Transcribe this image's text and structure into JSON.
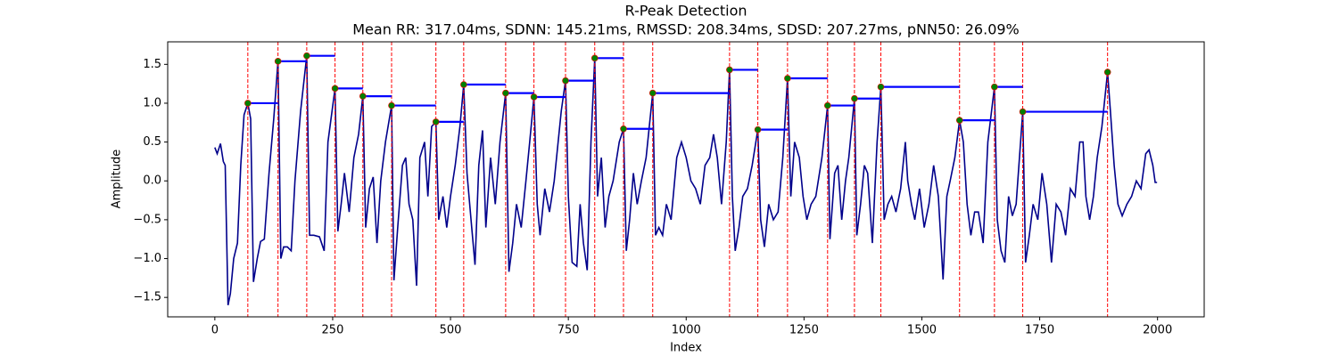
{
  "chart_data": {
    "type": "line",
    "title": "R-Peak Detection",
    "subtitle": "Mean RR: 317.04ms, SDNN: 145.21ms, RMSSD: 208.34ms, SDSD: 207.27ms, pNN50: 26.09%",
    "x_label": "Index",
    "y_label": "Amplitude",
    "xlim": [
      -100,
      2099
    ],
    "ylim": [
      -1.75,
      1.79
    ],
    "xticks": [
      0,
      250,
      500,
      750,
      1000,
      1250,
      1500,
      1750,
      2000
    ],
    "yticks": [
      {
        "value": -1.5,
        "label": "−1.5"
      },
      {
        "value": -1.0,
        "label": "−1.0"
      },
      {
        "value": -0.5,
        "label": "−0.5"
      },
      {
        "value": 0,
        "label": "0.0"
      },
      {
        "value": 0.5,
        "label": "0.5"
      },
      {
        "value": 1.0,
        "label": "1.0"
      },
      {
        "value": 1.5,
        "label": "1.5"
      }
    ],
    "signal": {
      "color": "#00008b",
      "x": [
        0,
        5,
        12,
        18,
        22,
        28,
        33,
        40,
        48,
        55,
        62,
        70,
        76,
        82,
        90,
        97,
        105,
        115,
        125,
        134,
        140,
        146,
        154,
        162,
        170,
        182,
        195,
        201,
        210,
        222,
        232,
        240,
        255,
        261,
        268,
        275,
        285,
        295,
        305,
        314,
        320,
        328,
        336,
        344,
        352,
        362,
        375,
        380,
        388,
        398,
        405,
        412,
        420,
        428,
        435,
        445,
        452,
        460,
        469,
        475,
        484,
        492,
        500,
        510,
        520,
        528,
        535,
        545,
        552,
        560,
        568,
        575,
        585,
        595,
        605,
        617,
        624,
        632,
        640,
        650,
        660,
        668,
        677,
        684,
        690,
        700,
        710,
        720,
        735,
        744,
        750,
        758,
        768,
        775,
        782,
        790,
        798,
        806,
        812,
        820,
        828,
        836,
        845,
        858,
        867,
        873,
        880,
        888,
        896,
        905,
        915,
        929,
        935,
        942,
        950,
        958,
        968,
        980,
        990,
        1000,
        1010,
        1020,
        1030,
        1040,
        1050,
        1058,
        1066,
        1075,
        1085,
        1092,
        1098,
        1104,
        1112,
        1120,
        1130,
        1140,
        1152,
        1158,
        1166,
        1175,
        1185,
        1195,
        1205,
        1215,
        1222,
        1230,
        1240,
        1248,
        1256,
        1265,
        1275,
        1288,
        1300,
        1305,
        1315,
        1322,
        1330,
        1338,
        1345,
        1357,
        1362,
        1370,
        1378,
        1385,
        1395,
        1405,
        1413,
        1420,
        1428,
        1436,
        1445,
        1455,
        1465,
        1470,
        1478,
        1485,
        1495,
        1505,
        1515,
        1525,
        1535,
        1545,
        1553,
        1560,
        1570,
        1580,
        1588,
        1596,
        1604,
        1612,
        1620,
        1630,
        1640,
        1654,
        1660,
        1668,
        1676,
        1684,
        1692,
        1700,
        1714,
        1720,
        1728,
        1736,
        1746,
        1755,
        1765,
        1775,
        1785,
        1795,
        1805,
        1815,
        1825,
        1835,
        1842,
        1848,
        1856,
        1864,
        1872,
        1882,
        1894,
        1900,
        1908,
        1916,
        1925,
        1935,
        1945,
        1955,
        1965,
        1975,
        1982,
        1990,
        1995,
        1999
      ],
      "y": [
        0.43,
        0.35,
        0.48,
        0.25,
        0.2,
        -1.6,
        -1.45,
        -1.0,
        -0.8,
        0.2,
        0.85,
        1.0,
        0.8,
        -1.3,
        -1.0,
        -0.78,
        -0.75,
        0.1,
        0.8,
        1.54,
        -1.0,
        -0.85,
        -0.85,
        -0.9,
        0.0,
        0.9,
        1.61,
        -0.7,
        -0.7,
        -0.72,
        -0.9,
        0.5,
        1.19,
        -0.65,
        -0.3,
        0.1,
        -0.4,
        0.3,
        0.6,
        1.09,
        -0.6,
        -0.1,
        0.05,
        -0.8,
        0.0,
        0.5,
        0.97,
        -1.28,
        -0.6,
        0.2,
        0.3,
        -0.3,
        -0.5,
        -1.35,
        0.3,
        0.5,
        -0.2,
        0.7,
        0.76,
        -0.5,
        -0.2,
        -0.6,
        -0.2,
        0.2,
        0.7,
        1.24,
        0.1,
        -0.6,
        -1.08,
        0.2,
        0.65,
        -0.6,
        0.3,
        -0.3,
        0.5,
        1.13,
        -1.17,
        -0.8,
        -0.3,
        -0.6,
        0.0,
        0.5,
        1.08,
        -0.3,
        -0.7,
        -0.1,
        -0.4,
        0.0,
        0.9,
        1.29,
        -0.2,
        -1.05,
        -1.1,
        -0.3,
        -0.8,
        -1.15,
        0.5,
        1.58,
        -0.2,
        0.3,
        -0.6,
        -0.2,
        0.0,
        0.5,
        0.67,
        -0.9,
        -0.5,
        0.1,
        -0.3,
        0.0,
        0.3,
        1.13,
        -0.7,
        -0.6,
        -0.7,
        -0.3,
        -0.5,
        0.3,
        0.5,
        0.3,
        0.0,
        -0.1,
        -0.3,
        0.2,
        0.3,
        0.6,
        0.3,
        -0.3,
        0.5,
        1.43,
        -0.2,
        -0.9,
        -0.6,
        -0.2,
        -0.1,
        0.2,
        0.66,
        -0.5,
        -0.85,
        -0.3,
        -0.5,
        -0.4,
        0.3,
        1.32,
        -0.2,
        0.5,
        0.3,
        -0.2,
        -0.5,
        -0.3,
        -0.2,
        0.3,
        0.97,
        -0.75,
        0.1,
        0.2,
        -0.5,
        0.0,
        0.3,
        1.06,
        -0.7,
        -0.3,
        0.2,
        0.1,
        -0.8,
        0.5,
        1.21,
        -0.5,
        -0.3,
        -0.2,
        -0.4,
        -0.1,
        0.5,
        0.0,
        -0.3,
        -0.5,
        -0.1,
        -0.6,
        -0.3,
        0.2,
        -0.2,
        -1.27,
        -0.2,
        0.0,
        0.3,
        0.78,
        0.5,
        -0.3,
        -0.7,
        -0.4,
        -0.4,
        -0.8,
        0.5,
        1.21,
        -0.5,
        -0.9,
        -1.05,
        -0.2,
        -0.45,
        -0.3,
        0.89,
        -1.05,
        -0.7,
        -0.3,
        -0.5,
        0.1,
        -0.3,
        -1.05,
        -0.3,
        -0.4,
        -0.7,
        -0.1,
        -0.2,
        0.5,
        0.5,
        -0.2,
        -0.5,
        -0.2,
        0.3,
        0.7,
        1.4,
        0.9,
        0.2,
        -0.3,
        -0.45,
        -0.3,
        -0.2,
        0.0,
        -0.1,
        0.35,
        0.4,
        0.2,
        -0.02,
        -0.02
      ]
    },
    "peaks": {
      "color": "green",
      "line_color": "red",
      "interval_color": "blue",
      "x": [
        70,
        134,
        195,
        255,
        314,
        375,
        469,
        528,
        617,
        677,
        744,
        806,
        867,
        929,
        1092,
        1152,
        1215,
        1300,
        1357,
        1413,
        1580,
        1654,
        1714,
        1894
      ],
      "y": [
        1.0,
        1.54,
        1.61,
        1.19,
        1.09,
        0.97,
        0.76,
        1.24,
        1.13,
        1.08,
        1.29,
        1.58,
        0.67,
        1.13,
        1.43,
        0.66,
        1.32,
        0.97,
        1.06,
        1.21,
        0.78,
        1.21,
        0.89,
        1.4
      ]
    }
  }
}
